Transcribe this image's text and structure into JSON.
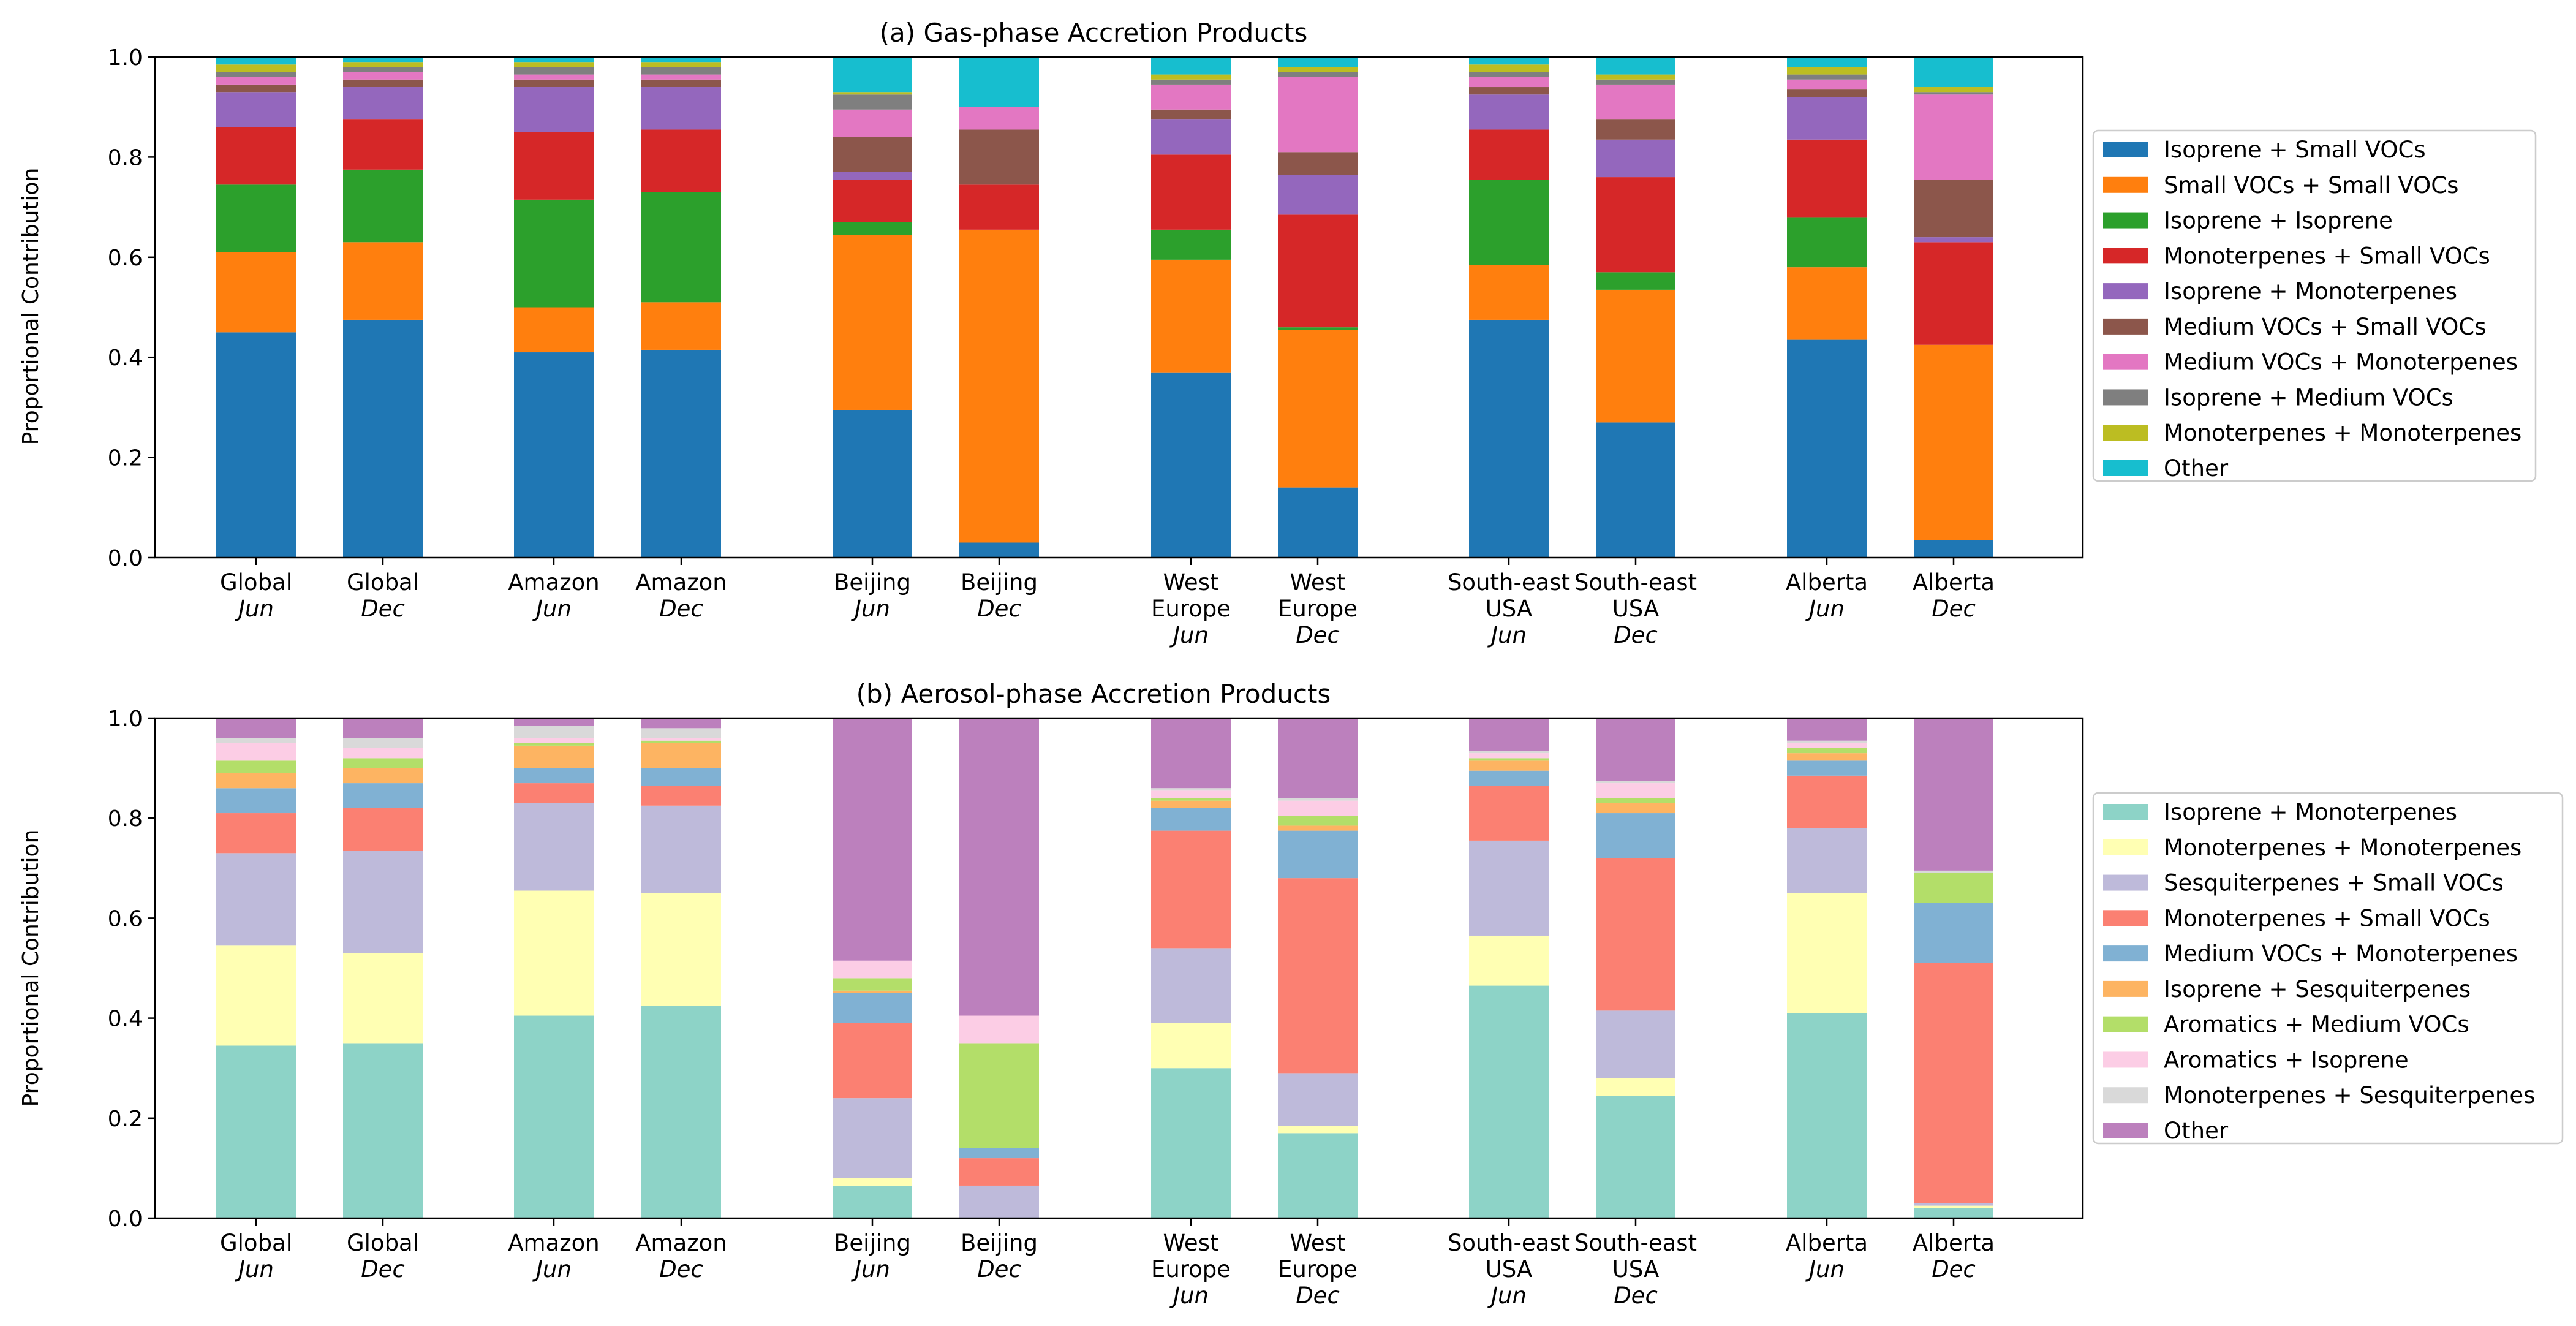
{
  "chart_data": [
    {
      "type": "bar",
      "stacked": true,
      "title": "(a) Gas-phase Accretion Products",
      "ylabel": "Proportional Contribution",
      "xlabel": "",
      "ylim": [
        0,
        1
      ],
      "yticks": [
        "0.0",
        "0.2",
        "0.4",
        "0.6",
        "0.8",
        "1.0"
      ],
      "grid": false,
      "legend_position": "right",
      "categories": [
        {
          "region": "Global",
          "month": "Jun"
        },
        {
          "region": "Global",
          "month": "Dec"
        },
        {
          "region": "Amazon",
          "month": "Jun"
        },
        {
          "region": "Amazon",
          "month": "Dec"
        },
        {
          "region": "Beijing",
          "month": "Jun"
        },
        {
          "region": "Beijing",
          "month": "Dec"
        },
        {
          "region": "West Europe",
          "month": "Jun"
        },
        {
          "region": "West Europe",
          "month": "Dec"
        },
        {
          "region": "South-east USA",
          "month": "Jun"
        },
        {
          "region": "South-east USA",
          "month": "Dec"
        },
        {
          "region": "Alberta",
          "month": "Jun"
        },
        {
          "region": "Alberta",
          "month": "Dec"
        }
      ],
      "series": [
        {
          "name": "Isoprene + Small VOCs",
          "color": "#1f77b4",
          "values": [
            0.45,
            0.475,
            0.41,
            0.415,
            0.295,
            0.03,
            0.37,
            0.14,
            0.475,
            0.27,
            0.435,
            0.035
          ]
        },
        {
          "name": "Small VOCs + Small VOCs",
          "color": "#ff7f0e",
          "values": [
            0.16,
            0.155,
            0.09,
            0.095,
            0.35,
            0.625,
            0.225,
            0.315,
            0.11,
            0.265,
            0.145,
            0.39
          ]
        },
        {
          "name": "Isoprene + Isoprene",
          "color": "#2ca02c",
          "values": [
            0.135,
            0.145,
            0.215,
            0.22,
            0.025,
            0.0,
            0.06,
            0.005,
            0.17,
            0.035,
            0.1,
            0.0
          ]
        },
        {
          "name": "Monoterpenes + Small VOCs",
          "color": "#d62728",
          "values": [
            0.115,
            0.1,
            0.135,
            0.125,
            0.085,
            0.09,
            0.15,
            0.225,
            0.1,
            0.19,
            0.155,
            0.205
          ]
        },
        {
          "name": "Isoprene + Monoterpenes",
          "color": "#9467bd",
          "values": [
            0.07,
            0.065,
            0.09,
            0.085,
            0.015,
            0.0,
            0.07,
            0.08,
            0.07,
            0.075,
            0.085,
            0.01
          ]
        },
        {
          "name": "Medium VOCs + Small VOCs",
          "color": "#8c564b",
          "values": [
            0.015,
            0.015,
            0.015,
            0.015,
            0.07,
            0.11,
            0.02,
            0.045,
            0.015,
            0.04,
            0.015,
            0.115
          ]
        },
        {
          "name": "Medium VOCs + Monoterpenes",
          "color": "#e377c2",
          "values": [
            0.015,
            0.015,
            0.01,
            0.01,
            0.055,
            0.045,
            0.05,
            0.15,
            0.02,
            0.07,
            0.02,
            0.17
          ]
        },
        {
          "name": "Isoprene + Medium VOCs",
          "color": "#7f7f7f",
          "values": [
            0.01,
            0.01,
            0.015,
            0.015,
            0.03,
            0.0,
            0.01,
            0.01,
            0.01,
            0.01,
            0.01,
            0.005
          ]
        },
        {
          "name": "Monoterpenes + Monoterpenes",
          "color": "#bcbd22",
          "values": [
            0.015,
            0.01,
            0.01,
            0.01,
            0.005,
            0.0,
            0.01,
            0.01,
            0.015,
            0.01,
            0.015,
            0.01
          ]
        },
        {
          "name": "Other",
          "color": "#17becf",
          "values": [
            0.015,
            0.01,
            0.01,
            0.01,
            0.07,
            0.1,
            0.035,
            0.02,
            0.015,
            0.035,
            0.02,
            0.06
          ]
        }
      ]
    },
    {
      "type": "bar",
      "stacked": true,
      "title": "(b) Aerosol-phase Accretion Products",
      "ylabel": "Proportional Contribution",
      "xlabel": "",
      "ylim": [
        0,
        1
      ],
      "yticks": [
        "0.0",
        "0.2",
        "0.4",
        "0.6",
        "0.8",
        "1.0"
      ],
      "grid": false,
      "legend_position": "right",
      "categories": [
        {
          "region": "Global",
          "month": "Jun"
        },
        {
          "region": "Global",
          "month": "Dec"
        },
        {
          "region": "Amazon",
          "month": "Jun"
        },
        {
          "region": "Amazon",
          "month": "Dec"
        },
        {
          "region": "Beijing",
          "month": "Jun"
        },
        {
          "region": "Beijing",
          "month": "Dec"
        },
        {
          "region": "West Europe",
          "month": "Jun"
        },
        {
          "region": "West Europe",
          "month": "Dec"
        },
        {
          "region": "South-east USA",
          "month": "Jun"
        },
        {
          "region": "South-east USA",
          "month": "Dec"
        },
        {
          "region": "Alberta",
          "month": "Jun"
        },
        {
          "region": "Alberta",
          "month": "Dec"
        }
      ],
      "series": [
        {
          "name": "Isoprene + Monoterpenes",
          "color": "#8dd3c7",
          "values": [
            0.345,
            0.35,
            0.405,
            0.425,
            0.065,
            0.0,
            0.3,
            0.17,
            0.465,
            0.245,
            0.41,
            0.02
          ]
        },
        {
          "name": "Monoterpenes + Monoterpenes",
          "color": "#ffffb3",
          "values": [
            0.2,
            0.18,
            0.25,
            0.225,
            0.015,
            0.0,
            0.09,
            0.015,
            0.1,
            0.035,
            0.24,
            0.005
          ]
        },
        {
          "name": "Sesquiterpenes + Small VOCs",
          "color": "#bebada",
          "values": [
            0.185,
            0.205,
            0.175,
            0.175,
            0.16,
            0.065,
            0.15,
            0.105,
            0.19,
            0.135,
            0.13,
            0.005
          ]
        },
        {
          "name": "Monoterpenes + Small VOCs",
          "color": "#fb8072",
          "values": [
            0.08,
            0.085,
            0.04,
            0.04,
            0.15,
            0.055,
            0.235,
            0.39,
            0.11,
            0.305,
            0.105,
            0.48
          ]
        },
        {
          "name": "Medium VOCs + Monoterpenes",
          "color": "#80b1d3",
          "values": [
            0.05,
            0.05,
            0.03,
            0.035,
            0.06,
            0.02,
            0.045,
            0.095,
            0.03,
            0.09,
            0.03,
            0.12
          ]
        },
        {
          "name": "Isoprene + Sesquiterpenes",
          "color": "#fdb462",
          "values": [
            0.03,
            0.03,
            0.045,
            0.05,
            0.005,
            0.0,
            0.015,
            0.01,
            0.02,
            0.02,
            0.015,
            0.0
          ]
        },
        {
          "name": "Aromatics + Medium VOCs",
          "color": "#b3de69",
          "values": [
            0.025,
            0.02,
            0.005,
            0.005,
            0.025,
            0.21,
            0.005,
            0.02,
            0.005,
            0.01,
            0.01,
            0.06
          ]
        },
        {
          "name": "Aromatics + Isoprene",
          "color": "#fccde5",
          "values": [
            0.035,
            0.02,
            0.01,
            0.005,
            0.035,
            0.055,
            0.015,
            0.03,
            0.01,
            0.03,
            0.01,
            0.0
          ]
        },
        {
          "name": "Monoterpenes + Sesquiterpenes",
          "color": "#d9d9d9",
          "values": [
            0.01,
            0.02,
            0.025,
            0.02,
            0.0,
            0.0,
            0.005,
            0.005,
            0.005,
            0.005,
            0.005,
            0.005
          ]
        },
        {
          "name": "Other",
          "color": "#bc80bd",
          "values": [
            0.04,
            0.04,
            0.015,
            0.02,
            0.485,
            0.595,
            0.14,
            0.16,
            0.065,
            0.125,
            0.045,
            0.305
          ]
        }
      ]
    }
  ]
}
